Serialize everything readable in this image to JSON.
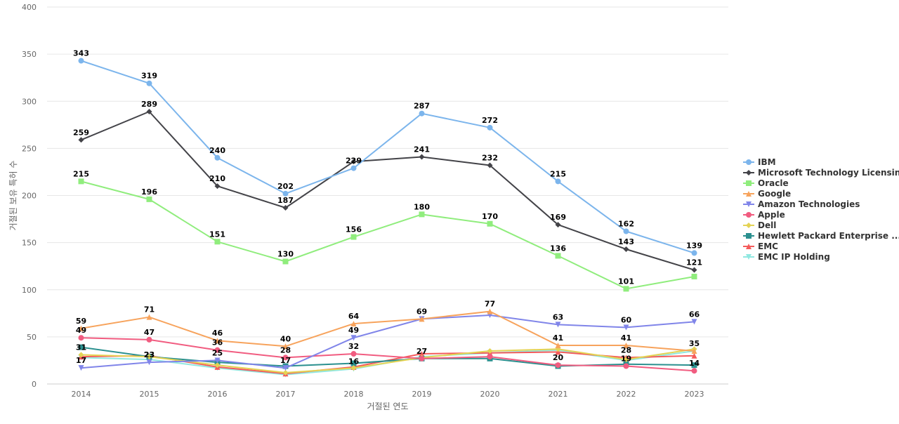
{
  "chart_data": {
    "type": "line",
    "xlabel": "거절된 연도",
    "ylabel": "거절된 보유 특허 수",
    "ylim": [
      0,
      400
    ],
    "yticks": [
      0,
      50,
      100,
      150,
      200,
      250,
      300,
      350,
      400
    ],
    "grid": true,
    "legend_position": "right",
    "categories": [
      "2014",
      "2015",
      "2016",
      "2017",
      "2018",
      "2019",
      "2020",
      "2021",
      "2022",
      "2023"
    ],
    "series": [
      {
        "name": "IBM",
        "color": "#7cb5ec",
        "marker": "circle",
        "values": [
          343,
          319,
          240,
          202,
          229,
          287,
          272,
          215,
          162,
          139
        ],
        "labeled": [
          true,
          true,
          true,
          true,
          true,
          true,
          true,
          true,
          true,
          true
        ]
      },
      {
        "name": "Microsoft Technology Licensing",
        "color": "#434348",
        "marker": "diamond",
        "values": [
          259,
          289,
          210,
          187,
          236,
          241,
          232,
          169,
          143,
          121
        ],
        "labeled": [
          true,
          true,
          true,
          true,
          false,
          true,
          true,
          true,
          true,
          true
        ]
      },
      {
        "name": "Oracle",
        "color": "#90ed7d",
        "marker": "square",
        "values": [
          215,
          196,
          151,
          130,
          156,
          180,
          170,
          136,
          101,
          114
        ],
        "labeled": [
          true,
          true,
          true,
          true,
          true,
          true,
          true,
          true,
          true,
          false
        ]
      },
      {
        "name": "Google",
        "color": "#f7a35c",
        "marker": "triangle",
        "values": [
          59,
          71,
          46,
          40,
          64,
          69,
          77,
          41,
          41,
          35
        ],
        "labeled": [
          true,
          true,
          true,
          true,
          true,
          true,
          true,
          true,
          true,
          true
        ]
      },
      {
        "name": "Amazon Technologies",
        "color": "#8085e9",
        "marker": "triangle-down",
        "values": [
          17,
          23,
          25,
          17,
          49,
          69,
          73,
          63,
          60,
          66
        ],
        "labeled": [
          true,
          true,
          false,
          true,
          true,
          false,
          false,
          true,
          true,
          true
        ]
      },
      {
        "name": "Apple",
        "color": "#f15c80",
        "marker": "circle",
        "values": [
          49,
          47,
          36,
          28,
          32,
          27,
          29,
          20,
          19,
          14
        ],
        "labeled": [
          true,
          true,
          true,
          true,
          true,
          true,
          false,
          true,
          true,
          true
        ]
      },
      {
        "name": "Dell",
        "color": "#e4d354",
        "marker": "diamond",
        "values": [
          31,
          29,
          20,
          12,
          17,
          28,
          35,
          37,
          26,
          37
        ],
        "labeled": [
          false,
          false,
          false,
          false,
          false,
          false,
          false,
          false,
          false,
          false
        ]
      },
      {
        "name": "Hewlett Packard Enterprise ...",
        "color": "#2b908f",
        "marker": "square",
        "values": [
          39,
          29,
          23,
          19,
          22,
          27,
          27,
          19,
          21,
          20
        ],
        "labeled": [
          false,
          false,
          false,
          false,
          false,
          false,
          false,
          false,
          false,
          false
        ]
      },
      {
        "name": "EMC",
        "color": "#f45b5b",
        "marker": "triangle",
        "values": [
          29,
          30,
          18,
          11,
          18,
          32,
          33,
          34,
          28,
          30
        ],
        "labeled": [
          false,
          false,
          false,
          false,
          false,
          false,
          false,
          false,
          false,
          false
        ]
      },
      {
        "name": "EMC IP Holding",
        "color": "#91e8e1",
        "marker": "triangle-down",
        "values": [
          28,
          26,
          17,
          10,
          16,
          29,
          33,
          36,
          25,
          35
        ],
        "labeled": [
          false,
          false,
          false,
          false,
          false,
          false,
          false,
          false,
          false,
          false
        ]
      }
    ],
    "extra_labels": [
      {
        "category": "2014",
        "value": 31,
        "text": "31"
      },
      {
        "category": "2015",
        "value": 23,
        "text": "23"
      },
      {
        "category": "2016",
        "value": 25,
        "text": "25"
      },
      {
        "category": "2018",
        "value": 16,
        "text": "16"
      },
      {
        "category": "2022",
        "value": 28,
        "text": "28"
      }
    ]
  }
}
